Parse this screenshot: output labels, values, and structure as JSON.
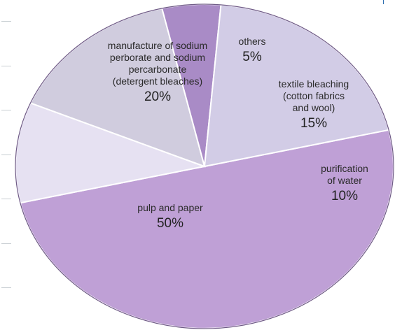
{
  "chart_data": {
    "type": "pie",
    "title": "",
    "slices": [
      {
        "label": [
          "pulp and paper"
        ],
        "percent_label": "50%",
        "value": 50,
        "color": "#bfa0d6"
      },
      {
        "label": [
          "purification",
          "of water"
        ],
        "percent_label": "10%",
        "value": 10,
        "color": "#e6e1f2"
      },
      {
        "label": [
          "textile bleaching",
          "(cotton fabrics",
          "and wool)"
        ],
        "percent_label": "15%",
        "value": 15,
        "color": "#d0ccde"
      },
      {
        "label": [
          "others"
        ],
        "percent_label": "5%",
        "value": 5,
        "color": "#a98bc6"
      },
      {
        "label": [
          "manufacture of sodium",
          "perborate and sodium",
          "percarbonate",
          "(detergent bleaches)"
        ],
        "percent_label": "20%",
        "value": 20,
        "color": "#d2cce6"
      }
    ],
    "legend": "none",
    "slice_border_color": "#ffffff"
  }
}
